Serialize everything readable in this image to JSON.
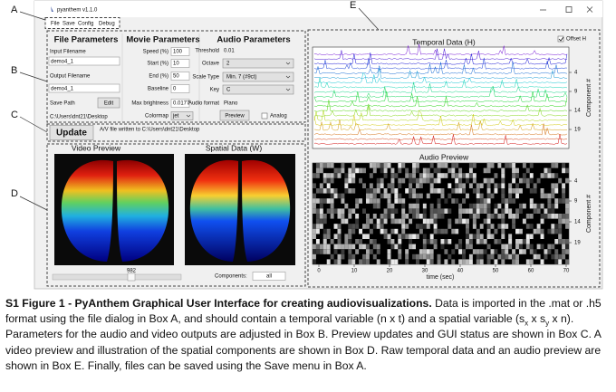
{
  "labels": {
    "a": "A",
    "b": "B",
    "c": "C",
    "d": "D",
    "e": "E"
  },
  "window": {
    "title": "pyanthem v1.1.0",
    "menu": [
      "File",
      "Save",
      "Config",
      "Debug"
    ]
  },
  "file_parameters": {
    "header": "File Parameters",
    "input_label": "Input Filename",
    "input_value": "demo4_1",
    "output_label": "Output Filename",
    "output_value": "demo4_1",
    "save_path_label": "Save Path",
    "edit_button": "Edit",
    "save_path_value": "C:\\Users\\dnt21\\Desktop"
  },
  "movie_parameters": {
    "header": "Movie Parameters",
    "fields": [
      {
        "label": "Speed (%)",
        "value": "100"
      },
      {
        "label": "Start (%)",
        "value": "10"
      },
      {
        "label": "End (%)",
        "value": "50"
      },
      {
        "label": "Baseline",
        "value": "0"
      },
      {
        "label": "Max brightness",
        "value": "0.0177"
      },
      {
        "label": "Colormap",
        "value": "jet"
      }
    ]
  },
  "audio_parameters": {
    "header": "Audio Parameters",
    "fields": [
      {
        "label": "Threshold",
        "value": "0.01"
      },
      {
        "label": "Octave",
        "value": "2"
      },
      {
        "label": "Scale Type",
        "value": "Min. 7 (#9ct)"
      },
      {
        "label": "Key",
        "value": "C"
      },
      {
        "label": "Audio format",
        "value": "Piano"
      }
    ],
    "preview_button": "Preview",
    "analog_checkbox": "Analog"
  },
  "status": {
    "update_button": "Update",
    "message": "A/V file written to C:\\Users\\dnt21\\Desktop"
  },
  "previews": {
    "video_title": "Video Preview",
    "spatial_title": "Spatial Data (W)",
    "slider_value": "982",
    "components_label": "Components:",
    "components_value": "all"
  },
  "temporal_panel": {
    "title": "Temporal Data (H)",
    "offset_checkbox": "Offset H",
    "component_ticks": [
      "4",
      "9",
      "14",
      "19"
    ],
    "axis_label": "Component #"
  },
  "audio_panel": {
    "title": "Audio Preview",
    "component_ticks": [
      "4",
      "9",
      "14",
      "19"
    ],
    "axis_label": "Component #",
    "time_ticks": [
      "0",
      "10",
      "20",
      "30",
      "40",
      "50",
      "60",
      "70"
    ],
    "time_label": "time (sec)"
  },
  "caption": {
    "bold": "S1 Figure 1 - PyAnthem Graphical User Interface for creating audiovisualizations.",
    "text_1": "Data is imported in the .mat or .h5 format using the file dialog in Box A, and should contain a temporal variable (n x t) and a spatial variable (s",
    "sub_x": "x",
    "text_2": "x s",
    "sub_y": "y",
    "text_3": "x n). Parameters for the audio and video outputs are adjusted in Box B. Preview updates and GUI status are shown in Box C. A video preview and illustration of the spatial components are shown in Box D. Raw temporal data and an audio preview are shown in Box E. Finally, files can be saved using the Save menu in Box A."
  }
}
